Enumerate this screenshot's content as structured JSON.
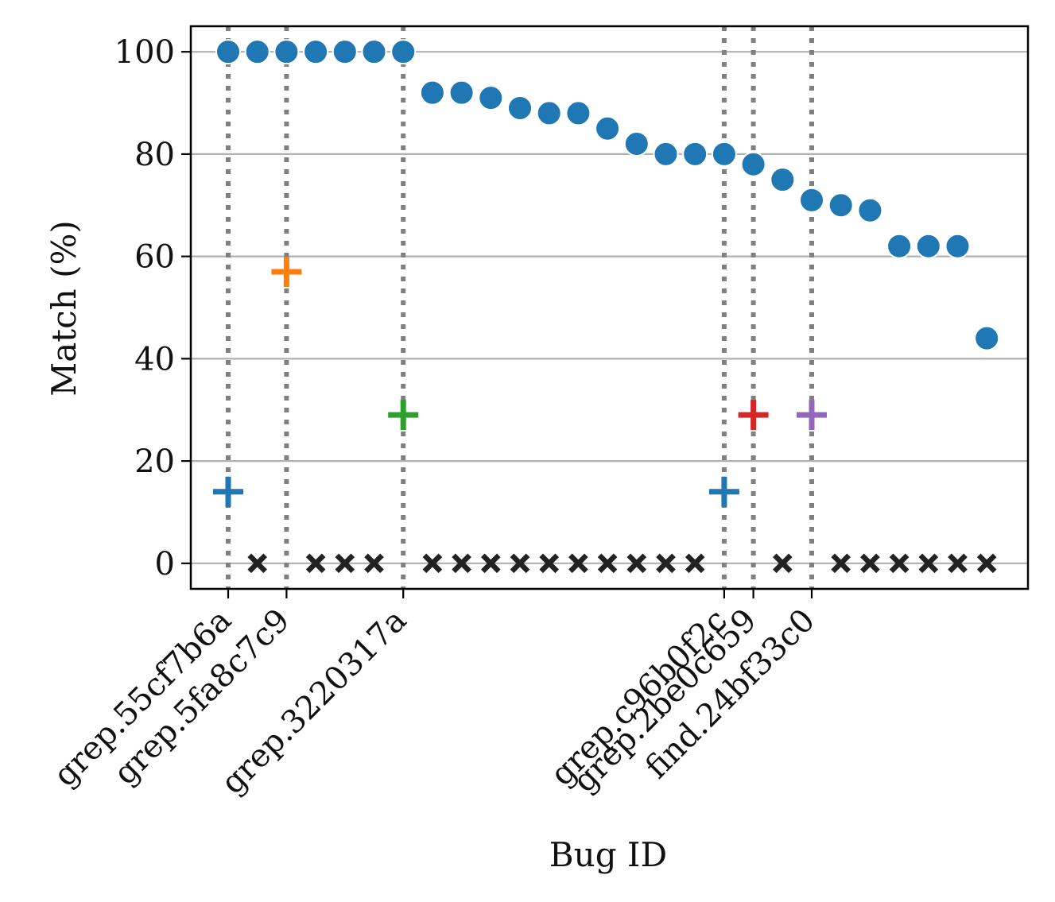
{
  "chart_data": {
    "type": "scatter",
    "xlabel": "Bug ID",
    "ylabel": "Match (%)",
    "ylim": [
      -5,
      105
    ],
    "yticks": [
      0,
      20,
      40,
      60,
      80,
      100
    ],
    "grid": "horizontal",
    "x_count": 27,
    "labeled_ticks": [
      {
        "x": 0,
        "label": "grep.55cf7b6a"
      },
      {
        "x": 2,
        "label": "grep.5fa8c7c9"
      },
      {
        "x": 6,
        "label": "grep.3220317a"
      },
      {
        "x": 17,
        "label": "grep.c96b0f2c"
      },
      {
        "x": 18,
        "label": "grep.2be0c659"
      },
      {
        "x": 20,
        "label": "find.24bf33c0"
      }
    ],
    "highlight_lines_x": [
      0,
      2,
      6,
      17,
      18,
      20
    ],
    "series": [
      {
        "marker": "circle",
        "color": "#1f77b4",
        "points": [
          [
            0,
            100
          ],
          [
            1,
            100
          ],
          [
            2,
            100
          ],
          [
            3,
            100
          ],
          [
            4,
            100
          ],
          [
            5,
            100
          ],
          [
            6,
            100
          ],
          [
            7,
            92
          ],
          [
            8,
            92
          ],
          [
            9,
            91
          ],
          [
            10,
            89
          ],
          [
            11,
            88
          ],
          [
            12,
            88
          ],
          [
            13,
            85
          ],
          [
            14,
            82
          ],
          [
            15,
            80
          ],
          [
            16,
            80
          ],
          [
            17,
            80
          ],
          [
            18,
            78
          ],
          [
            19,
            75
          ],
          [
            20,
            71
          ],
          [
            21,
            70
          ],
          [
            22,
            69
          ],
          [
            23,
            62
          ],
          [
            24,
            62
          ],
          [
            25,
            62
          ],
          [
            26,
            44
          ]
        ]
      },
      {
        "marker": "plus",
        "points": [
          {
            "x": 0,
            "y": 14,
            "color": "#1f77b4"
          },
          {
            "x": 2,
            "y": 57,
            "color": "#ff7f0e"
          },
          {
            "x": 6,
            "y": 29,
            "color": "#2ca02c"
          },
          {
            "x": 17,
            "y": 14,
            "color": "#1f77b4"
          },
          {
            "x": 18,
            "y": 29,
            "color": "#d62728"
          },
          {
            "x": 20,
            "y": 29,
            "color": "#9467bd"
          }
        ]
      },
      {
        "marker": "x",
        "color": "#222222",
        "points": [
          [
            1,
            0
          ],
          [
            3,
            0
          ],
          [
            4,
            0
          ],
          [
            5,
            0
          ],
          [
            7,
            0
          ],
          [
            8,
            0
          ],
          [
            9,
            0
          ],
          [
            10,
            0
          ],
          [
            11,
            0
          ],
          [
            12,
            0
          ],
          [
            13,
            0
          ],
          [
            14,
            0
          ],
          [
            15,
            0
          ],
          [
            16,
            0
          ],
          [
            19,
            0
          ],
          [
            21,
            0
          ],
          [
            22,
            0
          ],
          [
            23,
            0
          ],
          [
            24,
            0
          ],
          [
            25,
            0
          ],
          [
            26,
            0
          ]
        ]
      }
    ]
  }
}
